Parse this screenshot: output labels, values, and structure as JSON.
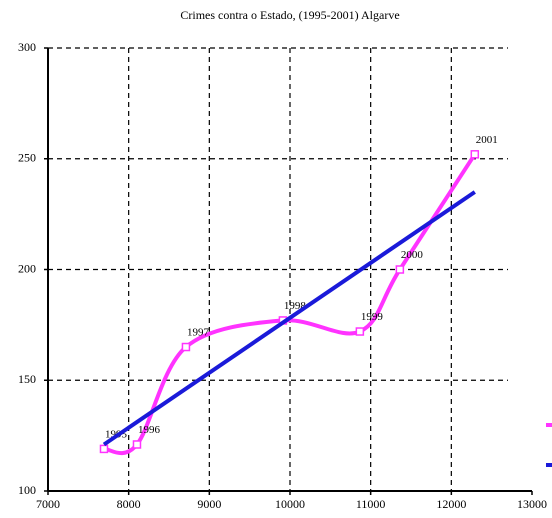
{
  "chart_data": {
    "type": "line",
    "title": "Crimes contra o Estado, (1995-2001) Algarve",
    "series": [
      {
        "color": "#ff33ff",
        "smooth": true,
        "markers": true,
        "x": [
          7694,
          8103,
          8710,
          9912,
          10866,
          11362,
          12291
        ],
        "values": [
          119,
          121,
          165,
          177,
          172,
          200,
          252
        ],
        "point_labels": [
          "1995",
          "1996",
          "1997",
          "1998",
          "1999",
          "2000",
          "2001"
        ]
      },
      {
        "color": "#1a1ad9",
        "smooth": false,
        "markers": false,
        "x": [
          7694,
          12291
        ],
        "values": [
          121,
          235
        ]
      }
    ],
    "xlim": [
      7000,
      13000
    ],
    "xticks": [
      7000,
      8000,
      9000,
      10000,
      11000,
      12000,
      13000
    ],
    "ylim": [
      100,
      300
    ],
    "yticks": [
      100,
      150,
      200,
      250,
      300
    ],
    "grid": true
  }
}
